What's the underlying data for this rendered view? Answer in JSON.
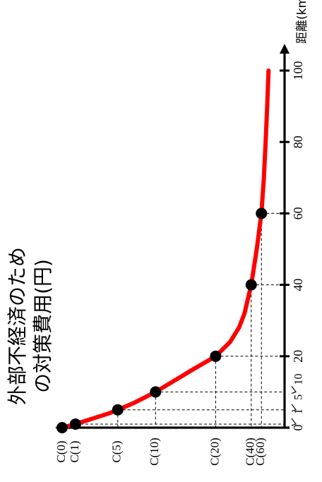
{
  "chart_data": {
    "type": "line",
    "orientation": "rotated-90-ccw",
    "ylabel_lines": [
      "外部不経済のため",
      "の対策費用(円)"
    ],
    "xlabel": "距離(km)",
    "x_ticks": [
      "0",
      "20",
      "40",
      "60",
      "80",
      "100"
    ],
    "x_minor_ticks": [
      "1",
      "5",
      "10"
    ],
    "x_range": [
      0,
      100
    ],
    "curve": {
      "color": "#ff0000",
      "points": [
        [
          0,
          100
        ],
        [
          0.5,
          97
        ],
        [
          1,
          94
        ],
        [
          2,
          89
        ],
        [
          3,
          84
        ],
        [
          4,
          79
        ],
        [
          5,
          75
        ],
        [
          7,
          67.5
        ],
        [
          10,
          58
        ],
        [
          13,
          50
        ],
        [
          16,
          42
        ],
        [
          20,
          31
        ],
        [
          24,
          24.5
        ],
        [
          28,
          20.5
        ],
        [
          32,
          18
        ],
        [
          36,
          16.5
        ],
        [
          40,
          15
        ],
        [
          50,
          12.5
        ],
        [
          60,
          10.4
        ],
        [
          70,
          9.3
        ],
        [
          80,
          8.5
        ],
        [
          90,
          7.8
        ],
        [
          100,
          7.2
        ]
      ]
    },
    "points": [
      {
        "x": 0,
        "y": 100,
        "label": "C(0)"
      },
      {
        "x": 1,
        "y": 94,
        "label": "C(1)"
      },
      {
        "x": 5,
        "y": 75,
        "label": "C(5)"
      },
      {
        "x": 10,
        "y": 58,
        "label": "C(10)"
      },
      {
        "x": 20,
        "y": 31,
        "label": "C(20)"
      },
      {
        "x": 40,
        "y": 15,
        "label": "C(40)"
      },
      {
        "x": 60,
        "y": 10.4,
        "label": "C(60)"
      }
    ],
    "marker_color": "#000000"
  }
}
